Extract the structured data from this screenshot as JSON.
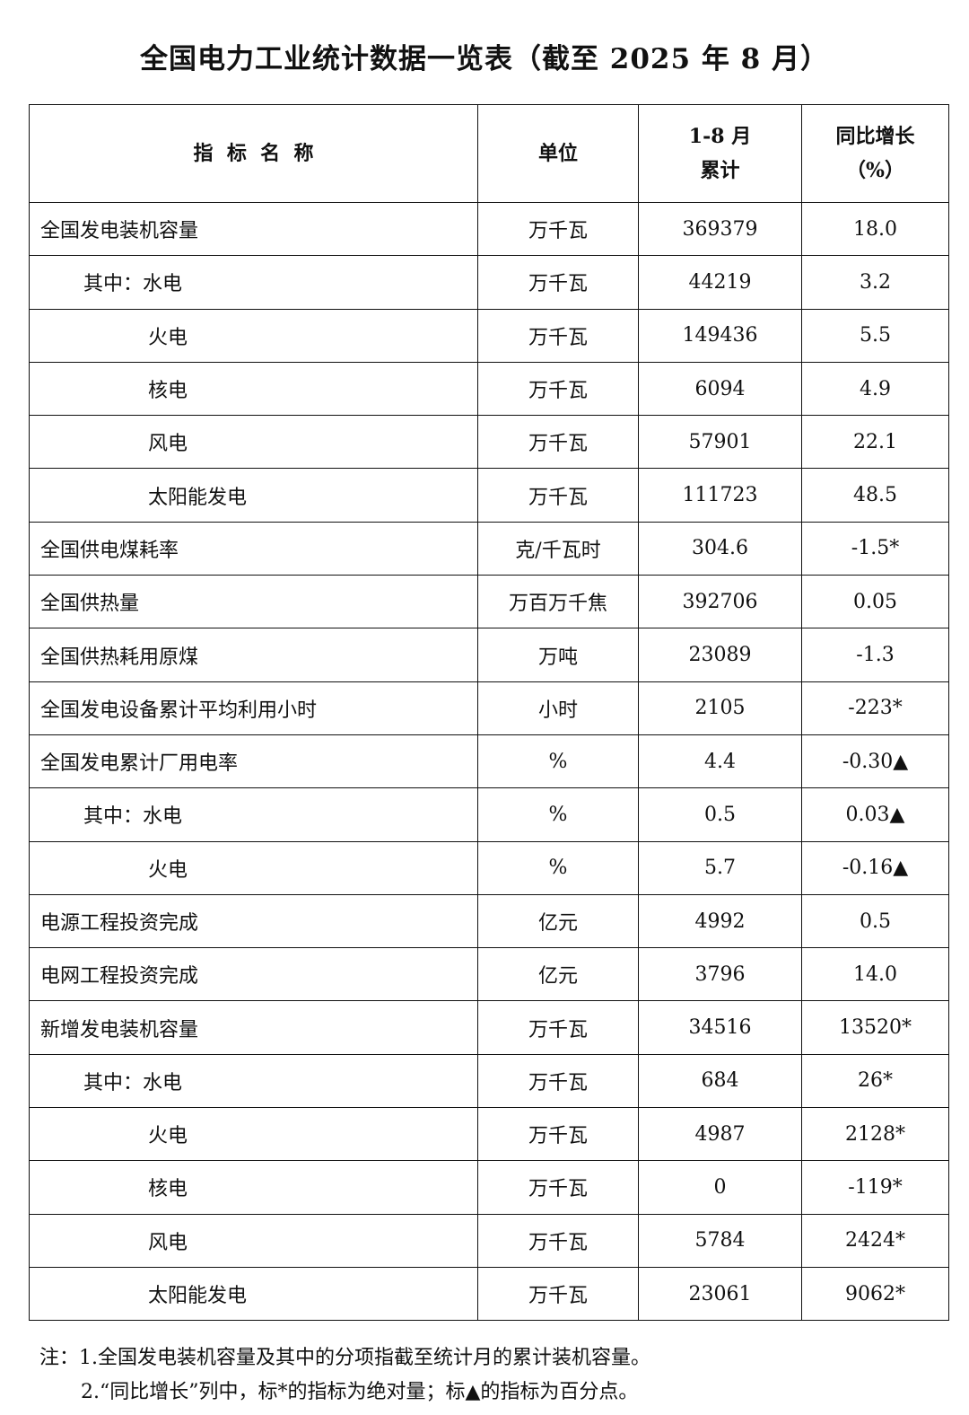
{
  "title": "全国电力工业统计数据一览表（截至 2025 年 8 月）",
  "headers": {
    "name": "指  标  名  称",
    "unit": "单位",
    "cum_line1": "1-8 月",
    "cum_line2": "累计",
    "yoy_line1": "同比增长",
    "yoy_line2": "（%）"
  },
  "rows": [
    {
      "name": "全国发电装机容量",
      "level": 0,
      "unit": "万千瓦",
      "value": "369379",
      "yoy": "18.0"
    },
    {
      "name": "其中：水电",
      "level": 1,
      "unit": "万千瓦",
      "value": "44219",
      "yoy": "3.2"
    },
    {
      "name": "火电",
      "level": 2,
      "unit": "万千瓦",
      "value": "149436",
      "yoy": "5.5"
    },
    {
      "name": "核电",
      "level": 2,
      "unit": "万千瓦",
      "value": "6094",
      "yoy": "4.9"
    },
    {
      "name": "风电",
      "level": 2,
      "unit": "万千瓦",
      "value": "57901",
      "yoy": "22.1"
    },
    {
      "name": "太阳能发电",
      "level": 2,
      "unit": "万千瓦",
      "value": "111723",
      "yoy": "48.5"
    },
    {
      "name": "全国供电煤耗率",
      "level": 0,
      "unit": "克/千瓦时",
      "value": "304.6",
      "yoy": "-1.5*"
    },
    {
      "name": "全国供热量",
      "level": 0,
      "unit": "万百万千焦",
      "value": "392706",
      "yoy": "0.05"
    },
    {
      "name": "全国供热耗用原煤",
      "level": 0,
      "unit": "万吨",
      "value": "23089",
      "yoy": "-1.3"
    },
    {
      "name": "全国发电设备累计平均利用小时",
      "level": 0,
      "unit": "小时",
      "value": "2105",
      "yoy": "-223*"
    },
    {
      "name": "全国发电累计厂用电率",
      "level": 0,
      "unit": "%",
      "value": "4.4",
      "yoy": "-0.30▲"
    },
    {
      "name": "其中：水电",
      "level": 1,
      "unit": "%",
      "value": "0.5",
      "yoy": "0.03▲"
    },
    {
      "name": "火电",
      "level": 2,
      "unit": "%",
      "value": "5.7",
      "yoy": "-0.16▲"
    },
    {
      "name": "电源工程投资完成",
      "level": 0,
      "unit": "亿元",
      "value": "4992",
      "yoy": "0.5"
    },
    {
      "name": "电网工程投资完成",
      "level": 0,
      "unit": "亿元",
      "value": "3796",
      "yoy": "14.0"
    },
    {
      "name": "新增发电装机容量",
      "level": 0,
      "unit": "万千瓦",
      "value": "34516",
      "yoy": "13520*"
    },
    {
      "name": "其中：水电",
      "level": 1,
      "unit": "万千瓦",
      "value": "684",
      "yoy": "26*"
    },
    {
      "name": "火电",
      "level": 2,
      "unit": "万千瓦",
      "value": "4987",
      "yoy": "2128*"
    },
    {
      "name": "核电",
      "level": 2,
      "unit": "万千瓦",
      "value": "0",
      "yoy": "-119*"
    },
    {
      "name": "风电",
      "level": 2,
      "unit": "万千瓦",
      "value": "5784",
      "yoy": "2424*"
    },
    {
      "name": "太阳能发电",
      "level": 2,
      "unit": "万千瓦",
      "value": "23061",
      "yoy": "9062*"
    }
  ],
  "notes": [
    "注：1.全国发电装机容量及其中的分项指截至统计月的累计装机容量。",
    "2.“同比增长”列中，标*的指标为绝对量；标▲的指标为百分点。"
  ]
}
